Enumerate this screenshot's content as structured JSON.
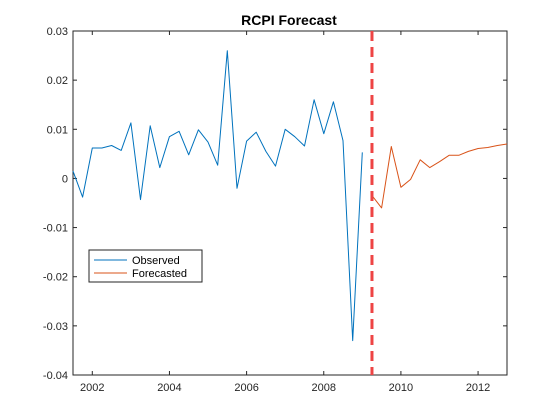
{
  "chart_data": {
    "type": "line",
    "title": "RCPI Forecast",
    "xlabel": "",
    "ylabel": "",
    "xlim": [
      2001.5,
      2012.75
    ],
    "ylim": [
      -0.04,
      0.03
    ],
    "x_ticks": [
      2002,
      2004,
      2006,
      2008,
      2010,
      2012
    ],
    "x_tick_labels": [
      "2002",
      "2004",
      "2006",
      "2008",
      "2010",
      "2012"
    ],
    "y_ticks": [
      0.03,
      0.02,
      0.01,
      0,
      -0.01,
      -0.02,
      -0.03,
      -0.04
    ],
    "y_tick_labels": [
      "0.03",
      "0.02",
      "0.01",
      "0",
      "-0.01",
      "-0.02",
      "-0.03",
      "-0.04"
    ],
    "grid": false,
    "legend_position": "bottom-left",
    "series": [
      {
        "name": "Observed",
        "color": "#0072BD",
        "x": [
          2001.5,
          2001.75,
          2002.0,
          2002.25,
          2002.5,
          2002.75,
          2003.0,
          2003.25,
          2003.5,
          2003.75,
          2004.0,
          2004.25,
          2004.5,
          2004.75,
          2005.0,
          2005.25,
          2005.5,
          2005.75,
          2006.0,
          2006.25,
          2006.5,
          2006.75,
          2007.0,
          2007.25,
          2007.5,
          2007.75,
          2008.0,
          2008.25,
          2008.5,
          2008.75,
          2009.0
        ],
        "y": [
          0.0015,
          -0.0038,
          0.0062,
          0.0062,
          0.0067,
          0.0057,
          0.0113,
          -0.0043,
          0.0107,
          0.0022,
          0.0085,
          0.0096,
          0.0048,
          0.0099,
          0.0074,
          0.0027,
          0.026,
          -0.002,
          0.0076,
          0.0094,
          0.0055,
          0.0025,
          0.01,
          0.0085,
          0.0066,
          0.016,
          0.0091,
          0.0156,
          0.0077,
          -0.033,
          0.0053
        ]
      },
      {
        "name": "Forecasted",
        "color": "#D95319",
        "x": [
          2009.25,
          2009.5,
          2009.75,
          2010.0,
          2010.25,
          2010.5,
          2010.75,
          2011.0,
          2011.25,
          2011.5,
          2011.75,
          2012.0,
          2012.25,
          2012.5,
          2012.75
        ],
        "y": [
          -0.0035,
          -0.006,
          0.0065,
          -0.0018,
          -0.0002,
          0.0038,
          0.0022,
          0.0034,
          0.0047,
          0.0047,
          0.0055,
          0.0061,
          0.0063,
          0.0067,
          0.007
        ]
      }
    ],
    "reference_line": {
      "x": 2009.25,
      "color": "#EE4444",
      "style": "dashed"
    },
    "axes_color": "#262626"
  }
}
